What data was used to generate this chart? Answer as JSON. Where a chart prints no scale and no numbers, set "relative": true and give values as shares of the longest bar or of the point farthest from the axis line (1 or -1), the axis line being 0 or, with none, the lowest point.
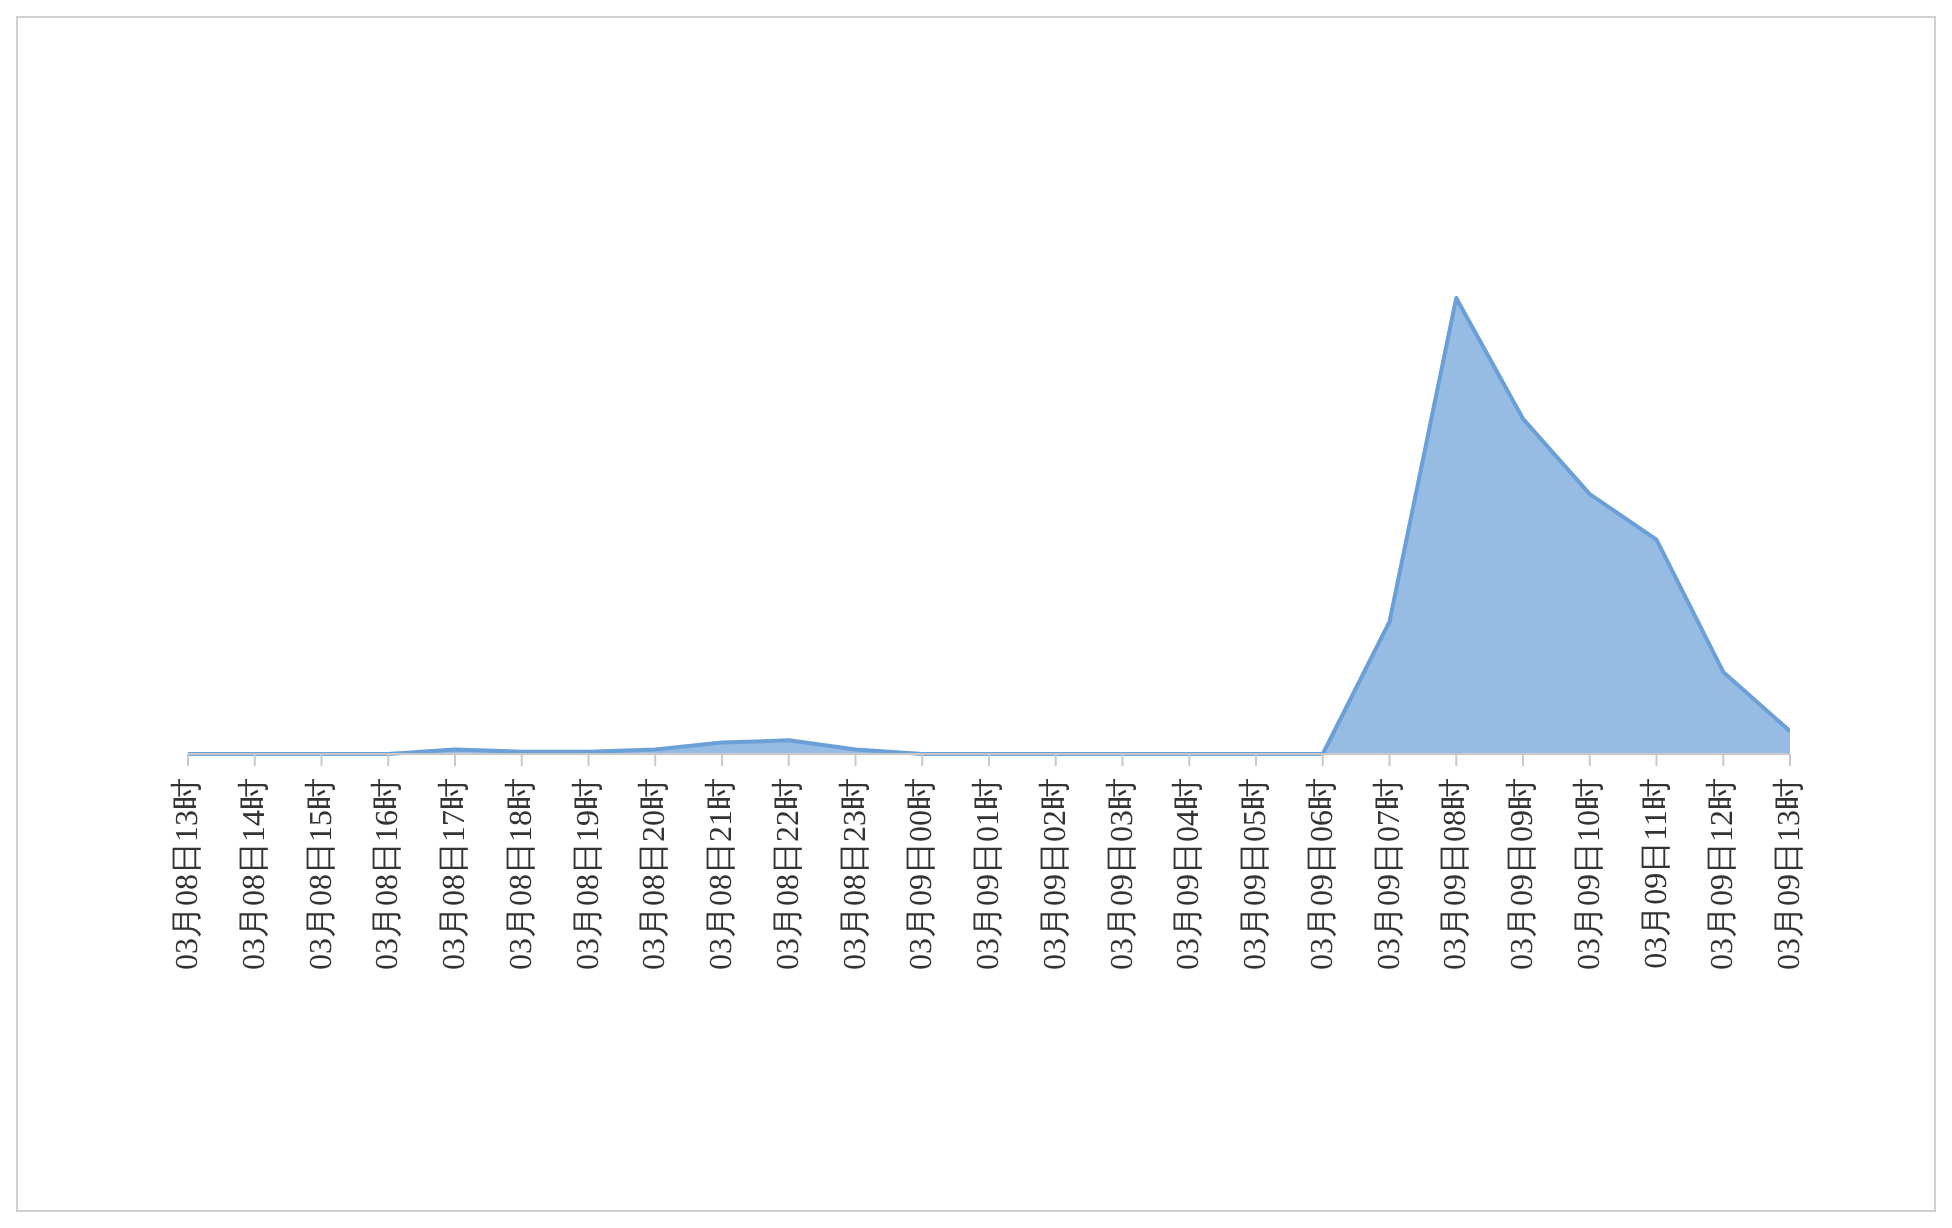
{
  "chart_data": {
    "type": "area",
    "relative": true,
    "color": "#6a9fd8",
    "categories": [
      "03月08日13时",
      "03月08日14时",
      "03月08日15时",
      "03月08日16时",
      "03月08日17时",
      "03月08日18时",
      "03月08日19时",
      "03月08日20时",
      "03月08日21时",
      "03月08日22时",
      "03月08日23时",
      "03月09日00时",
      "03月09日01时",
      "03月09日02时",
      "03月09日03时",
      "03月09日04时",
      "03月09日05时",
      "03月09日06时",
      "03月09日07时",
      "03月09日08时",
      "03月09日09时",
      "03月09日10时",
      "03月09日11时",
      "03月09日12时",
      "03月09日13时"
    ],
    "values": [
      0,
      0,
      0,
      0,
      0.01,
      0.005,
      0.005,
      0.01,
      0.025,
      0.03,
      0.01,
      0,
      0,
      0,
      0,
      0,
      0,
      0,
      0.29,
      1,
      0.735,
      0.57,
      0.47,
      0.18,
      0.05
    ],
    "grid": false,
    "legend": false
  }
}
